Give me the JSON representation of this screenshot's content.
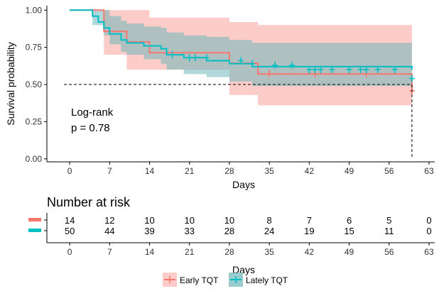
{
  "chart_data": [
    {
      "type": "line",
      "subtype": "kaplan-meier",
      "title": "",
      "xlabel": "Days",
      "ylabel": "Survival probability",
      "xlim": [
        -4,
        64
      ],
      "ylim": [
        -0.02,
        1.03
      ],
      "x_ticks": [
        0,
        7,
        14,
        21,
        28,
        35,
        42,
        49,
        56,
        63
      ],
      "y_ticks": [
        0.0,
        0.25,
        0.5,
        0.75,
        1.0
      ],
      "y_tick_labels": [
        "0.00",
        "0.25",
        "0.50",
        "0.75",
        "1.00"
      ],
      "grid": false,
      "annotation_line1": "Log-rank",
      "annotation_line2": "p = 0.78",
      "median_line": {
        "y": 0.5,
        "x_end": 60
      },
      "series": [
        {
          "name": "Early TQT",
          "color": "#F8766D",
          "band_color": "#FBC3C0",
          "steps": [
            [
              0,
              1.0
            ],
            [
              6,
              1.0
            ],
            [
              6,
              0.857
            ],
            [
              10,
              0.857
            ],
            [
              10,
              0.786
            ],
            [
              14,
              0.786
            ],
            [
              14,
              0.714
            ],
            [
              28,
              0.714
            ],
            [
              28,
              0.643
            ],
            [
              33,
              0.643
            ],
            [
              33,
              0.571
            ],
            [
              60,
              0.571
            ],
            [
              60,
              0.457
            ],
            [
              60,
              0.457
            ]
          ],
          "censor_x": [
            35,
            43,
            52
          ],
          "censor_y": [
            0.571,
            0.571,
            0.571
          ],
          "end_censor": [
            60,
            0.457
          ],
          "ci_steps": [
            [
              0,
              1.0,
              1.0
            ],
            [
              6,
              1.0,
              1.0
            ],
            [
              6,
              0.7,
              1.0
            ],
            [
              10,
              0.7,
              1.0
            ],
            [
              10,
              0.6,
              1.0
            ],
            [
              14,
              0.6,
              0.95
            ],
            [
              28,
              0.6,
              0.95
            ],
            [
              28,
              0.43,
              0.92
            ],
            [
              33,
              0.43,
              0.92
            ],
            [
              33,
              0.36,
              0.9
            ],
            [
              60,
              0.36,
              0.9
            ]
          ]
        },
        {
          "name": "Lately TQT",
          "color": "#00BFC4",
          "band_color": "#6FB7B9",
          "steps": [
            [
              0,
              1.0
            ],
            [
              4,
              1.0
            ],
            [
              4,
              0.96
            ],
            [
              5,
              0.96
            ],
            [
              5,
              0.92
            ],
            [
              6,
              0.92
            ],
            [
              6,
              0.88
            ],
            [
              7,
              0.88
            ],
            [
              7,
              0.84
            ],
            [
              9,
              0.84
            ],
            [
              9,
              0.8
            ],
            [
              10,
              0.8
            ],
            [
              10,
              0.78
            ],
            [
              13,
              0.78
            ],
            [
              13,
              0.76
            ],
            [
              16,
              0.76
            ],
            [
              16,
              0.74
            ],
            [
              17,
              0.74
            ],
            [
              17,
              0.7
            ],
            [
              20,
              0.7
            ],
            [
              20,
              0.68
            ],
            [
              24,
              0.68
            ],
            [
              24,
              0.66
            ],
            [
              28,
              0.66
            ],
            [
              28,
              0.64
            ],
            [
              32,
              0.64
            ],
            [
              32,
              0.62
            ],
            [
              60,
              0.62
            ],
            [
              60,
              0.6
            ]
          ],
          "censor_x": [
            18,
            21,
            22,
            24,
            30,
            32,
            36,
            39,
            42,
            43,
            44,
            46,
            49,
            51,
            52,
            54,
            57,
            60
          ],
          "censor_y": [
            0.7,
            0.68,
            0.68,
            0.68,
            0.66,
            0.64,
            0.63,
            0.63,
            0.6,
            0.6,
            0.6,
            0.6,
            0.6,
            0.6,
            0.6,
            0.6,
            0.6,
            0.54
          ],
          "ci_steps": [
            [
              0,
              1.0,
              1.0
            ],
            [
              4,
              1.0,
              1.0
            ],
            [
              4,
              0.9,
              1.0
            ],
            [
              6,
              0.83,
              1.0
            ],
            [
              7,
              0.77,
              0.96
            ],
            [
              9,
              0.72,
              0.93
            ],
            [
              10,
              0.7,
              0.91
            ],
            [
              13,
              0.67,
              0.89
            ],
            [
              16,
              0.64,
              0.88
            ],
            [
              17,
              0.6,
              0.85
            ],
            [
              20,
              0.57,
              0.83
            ],
            [
              24,
              0.55,
              0.82
            ],
            [
              28,
              0.52,
              0.8
            ],
            [
              32,
              0.49,
              0.78
            ],
            [
              60,
              0.47,
              0.76
            ]
          ]
        }
      ]
    },
    {
      "type": "table",
      "title": "Number at risk",
      "xlabel": "Days",
      "x_ticks": [
        0,
        7,
        14,
        21,
        28,
        35,
        42,
        49,
        56,
        63
      ],
      "time_points": [
        0,
        7,
        14,
        21,
        28,
        35,
        42,
        49,
        56,
        63
      ],
      "rows": [
        {
          "name": "Early TQT",
          "color": "#F8766D",
          "values": [
            14,
            12,
            10,
            10,
            10,
            8,
            7,
            6,
            5,
            0
          ]
        },
        {
          "name": "Lately TQT",
          "color": "#00BFC4",
          "values": [
            50,
            44,
            39,
            33,
            28,
            24,
            19,
            15,
            11,
            0
          ]
        }
      ]
    }
  ],
  "legend": {
    "placement": "bottom",
    "items": [
      {
        "label": "Early TQT",
        "color": "#F8766D",
        "band_color": "#FBC3C0"
      },
      {
        "label": "Lately TQT",
        "color": "#00BFC4",
        "band_color": "#6FB7B9"
      }
    ]
  }
}
